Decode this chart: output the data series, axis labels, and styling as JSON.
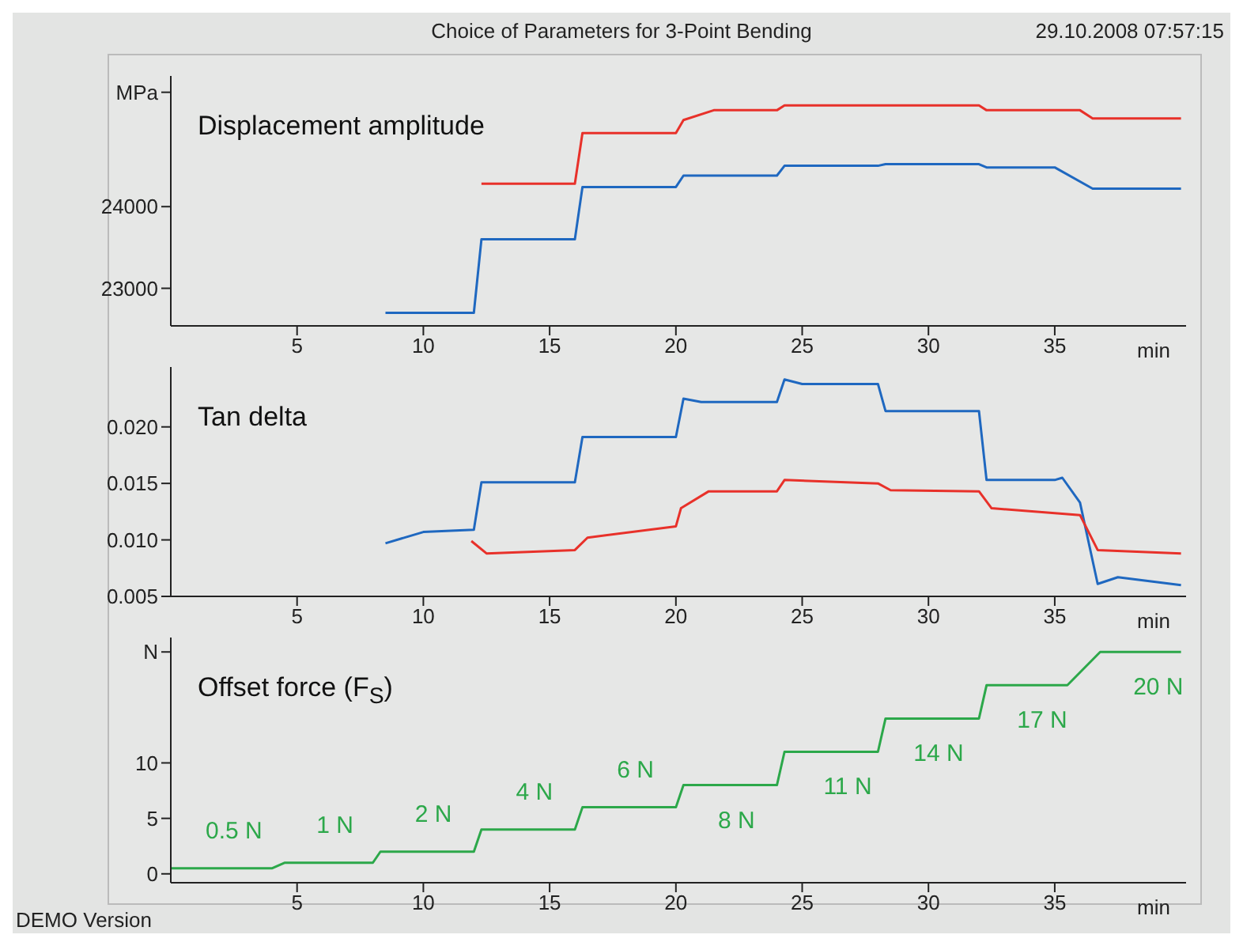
{
  "chart_data": [
    {
      "type": "line",
      "title": "Choice of Parameters for 3-Point Bending",
      "subtitle": "Displacement amplitude",
      "annotations": [
        "29.10.2008 07:57:15"
      ],
      "xlabel": "min",
      "xlim": [
        0,
        40.2
      ],
      "xticks": [
        5,
        10,
        15,
        20,
        25,
        30,
        35
      ],
      "ylim": [
        22540,
        25600
      ],
      "yticks": [
        23000,
        24000,
        {
          "value": 25400,
          "label": "MPa"
        }
      ],
      "line_style": "solid",
      "series": [
        {
          "color": "#e8312a",
          "x": [
            12.3,
            16,
            16.3,
            20,
            20.3,
            21.5,
            24,
            24.3,
            28,
            28.3,
            32,
            32.3,
            36,
            36.5,
            40
          ],
          "values": [
            24280,
            24280,
            24900,
            24900,
            25060,
            25180,
            25180,
            25240,
            25240,
            25240,
            25240,
            25180,
            25180,
            25080,
            25080
          ]
        },
        {
          "color": "#1f68c0",
          "x": [
            8.5,
            12,
            12.3,
            16,
            16.3,
            20,
            20.3,
            24,
            24.3,
            28,
            28.3,
            32,
            32.3,
            35,
            36.5,
            40
          ],
          "values": [
            22700,
            22700,
            23600,
            23600,
            24240,
            24240,
            24380,
            24380,
            24500,
            24500,
            24520,
            24520,
            24480,
            24480,
            24220,
            24220
          ]
        }
      ]
    },
    {
      "type": "line",
      "subtitle": "Tan delta",
      "xlabel": "min",
      "xlim": [
        0,
        40.2
      ],
      "xticks": [
        5,
        10,
        15,
        20,
        25,
        30,
        35
      ],
      "ylim": [
        0.005,
        0.0253
      ],
      "yticks": [
        {
          "value": 0.005,
          "label": "0.005"
        },
        {
          "value": 0.01,
          "label": "0.010"
        },
        {
          "value": 0.015,
          "label": "0.015"
        },
        {
          "value": 0.02,
          "label": "0.020"
        }
      ],
      "line_style": "solid",
      "series": [
        {
          "color": "#1f68c0",
          "x": [
            8.5,
            10,
            12,
            12.3,
            16,
            16.3,
            20,
            20.3,
            21,
            24,
            24.3,
            25,
            28,
            28.3,
            32,
            32.3,
            35,
            35.3,
            36,
            36.7,
            37.5,
            40
          ],
          "values": [
            0.0097,
            0.0107,
            0.0109,
            0.0151,
            0.0151,
            0.0191,
            0.0191,
            0.0225,
            0.0222,
            0.0222,
            0.0242,
            0.0238,
            0.0238,
            0.0214,
            0.0214,
            0.0153,
            0.0153,
            0.0155,
            0.0133,
            0.0061,
            0.0067,
            0.006
          ]
        },
        {
          "color": "#e8312a",
          "x": [
            11.9,
            12.5,
            16,
            16.5,
            20,
            20.2,
            21.3,
            24,
            24.3,
            28,
            28.5,
            32,
            32.5,
            36,
            36.7,
            40
          ],
          "values": [
            0.0099,
            0.0088,
            0.0091,
            0.0102,
            0.0112,
            0.0128,
            0.0143,
            0.0143,
            0.0153,
            0.015,
            0.0144,
            0.0143,
            0.0128,
            0.0122,
            0.0091,
            0.0088
          ]
        }
      ]
    },
    {
      "type": "line",
      "subtitle": "Offset force (F$_{S}$)",
      "annotations": [
        {
          "text": "0.5 N",
          "x": 2.5,
          "y": 0.5
        },
        {
          "text": "1 N",
          "x": 6.5,
          "y": 1
        },
        {
          "text": "2 N",
          "x": 10.4,
          "y": 2
        },
        {
          "text": "4 N",
          "x": 14.4,
          "y": 4
        },
        {
          "text": "6 N",
          "x": 18.4,
          "y": 6
        },
        {
          "text": "8 N",
          "x": 22.4,
          "y": 8
        },
        {
          "text": "11 N",
          "x": 26.8,
          "y": 11
        },
        {
          "text": "14 N",
          "x": 30.4,
          "y": 14
        },
        {
          "text": "17 N",
          "x": 34.5,
          "y": 17
        },
        {
          "text": "20 N",
          "x": 39.1,
          "y": 20
        },
        "DEMO Version"
      ],
      "xlabel": "min",
      "xlim": [
        0,
        40.2
      ],
      "xticks": [
        5,
        10,
        15,
        20,
        25,
        30,
        35
      ],
      "ylim": [
        -0.8,
        21.3
      ],
      "yticks": [
        0,
        5,
        10,
        {
          "value": 20,
          "label": "N"
        }
      ],
      "line_style": "solid",
      "series": [
        {
          "color": "#2ca84a",
          "x": [
            0,
            4,
            4.5,
            8,
            8.3,
            12,
            12.3,
            16,
            16.3,
            20,
            20.3,
            24,
            24.3,
            28,
            28.3,
            32,
            32.3,
            35.5,
            36.8,
            40
          ],
          "values": [
            0.5,
            0.5,
            1,
            1,
            2,
            2,
            4,
            4,
            6,
            6,
            8,
            8,
            11,
            11,
            14,
            14,
            17,
            17,
            20,
            20
          ]
        }
      ]
    }
  ]
}
